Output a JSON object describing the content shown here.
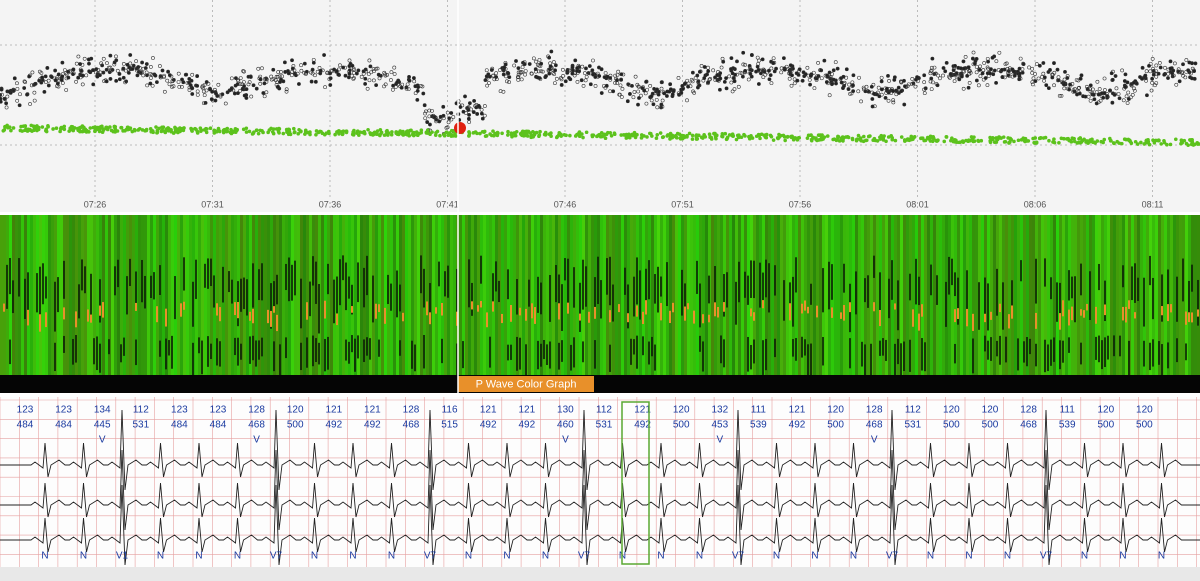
{
  "time_axis": {
    "labels": [
      "07:26",
      "07:31",
      "07:36",
      "07:41",
      "07:46",
      "07:51",
      "07:56",
      "08:01",
      "08:06",
      "08:11"
    ]
  },
  "panel_label": "P Wave Color Graph",
  "beats": [
    {
      "hr": "123",
      "rr": "484"
    },
    {
      "hr": "123",
      "rr": "484"
    },
    {
      "hr": "134",
      "rr": "445",
      "mark": "V"
    },
    {
      "hr": "112",
      "rr": "531"
    },
    {
      "hr": "123",
      "rr": "484"
    },
    {
      "hr": "123",
      "rr": "484"
    },
    {
      "hr": "128",
      "rr": "468",
      "mark": "V"
    },
    {
      "hr": "120",
      "rr": "500"
    },
    {
      "hr": "121",
      "rr": "492"
    },
    {
      "hr": "121",
      "rr": "492"
    },
    {
      "hr": "128",
      "rr": "468"
    },
    {
      "hr": "116",
      "rr": "515"
    },
    {
      "hr": "121",
      "rr": "492"
    },
    {
      "hr": "121",
      "rr": "492"
    },
    {
      "hr": "130",
      "rr": "460",
      "mark": "V"
    },
    {
      "hr": "112",
      "rr": "531"
    },
    {
      "hr": "121",
      "rr": "492"
    },
    {
      "hr": "120",
      "rr": "500"
    },
    {
      "hr": "132",
      "rr": "453",
      "mark": "V"
    },
    {
      "hr": "111",
      "rr": "539"
    },
    {
      "hr": "121",
      "rr": "492"
    },
    {
      "hr": "120",
      "rr": "500"
    },
    {
      "hr": "128",
      "rr": "468",
      "mark": "V"
    },
    {
      "hr": "112",
      "rr": "531"
    },
    {
      "hr": "120",
      "rr": "500"
    },
    {
      "hr": "120",
      "rr": "500"
    },
    {
      "hr": "128",
      "rr": "468"
    },
    {
      "hr": "111",
      "rr": "539"
    },
    {
      "hr": "120",
      "rr": "500"
    },
    {
      "hr": "120",
      "rr": "500"
    }
  ],
  "beat_types": [
    "N",
    "N",
    "V1",
    "N",
    "N",
    "N",
    "V7",
    "N",
    "N",
    "N",
    "V7",
    "N",
    "N",
    "N",
    "V7",
    "N",
    "N",
    "N",
    "V7",
    "N",
    "N",
    "N",
    "V7",
    "N",
    "N",
    "N",
    "V7",
    "N",
    "N",
    "N"
  ]
}
